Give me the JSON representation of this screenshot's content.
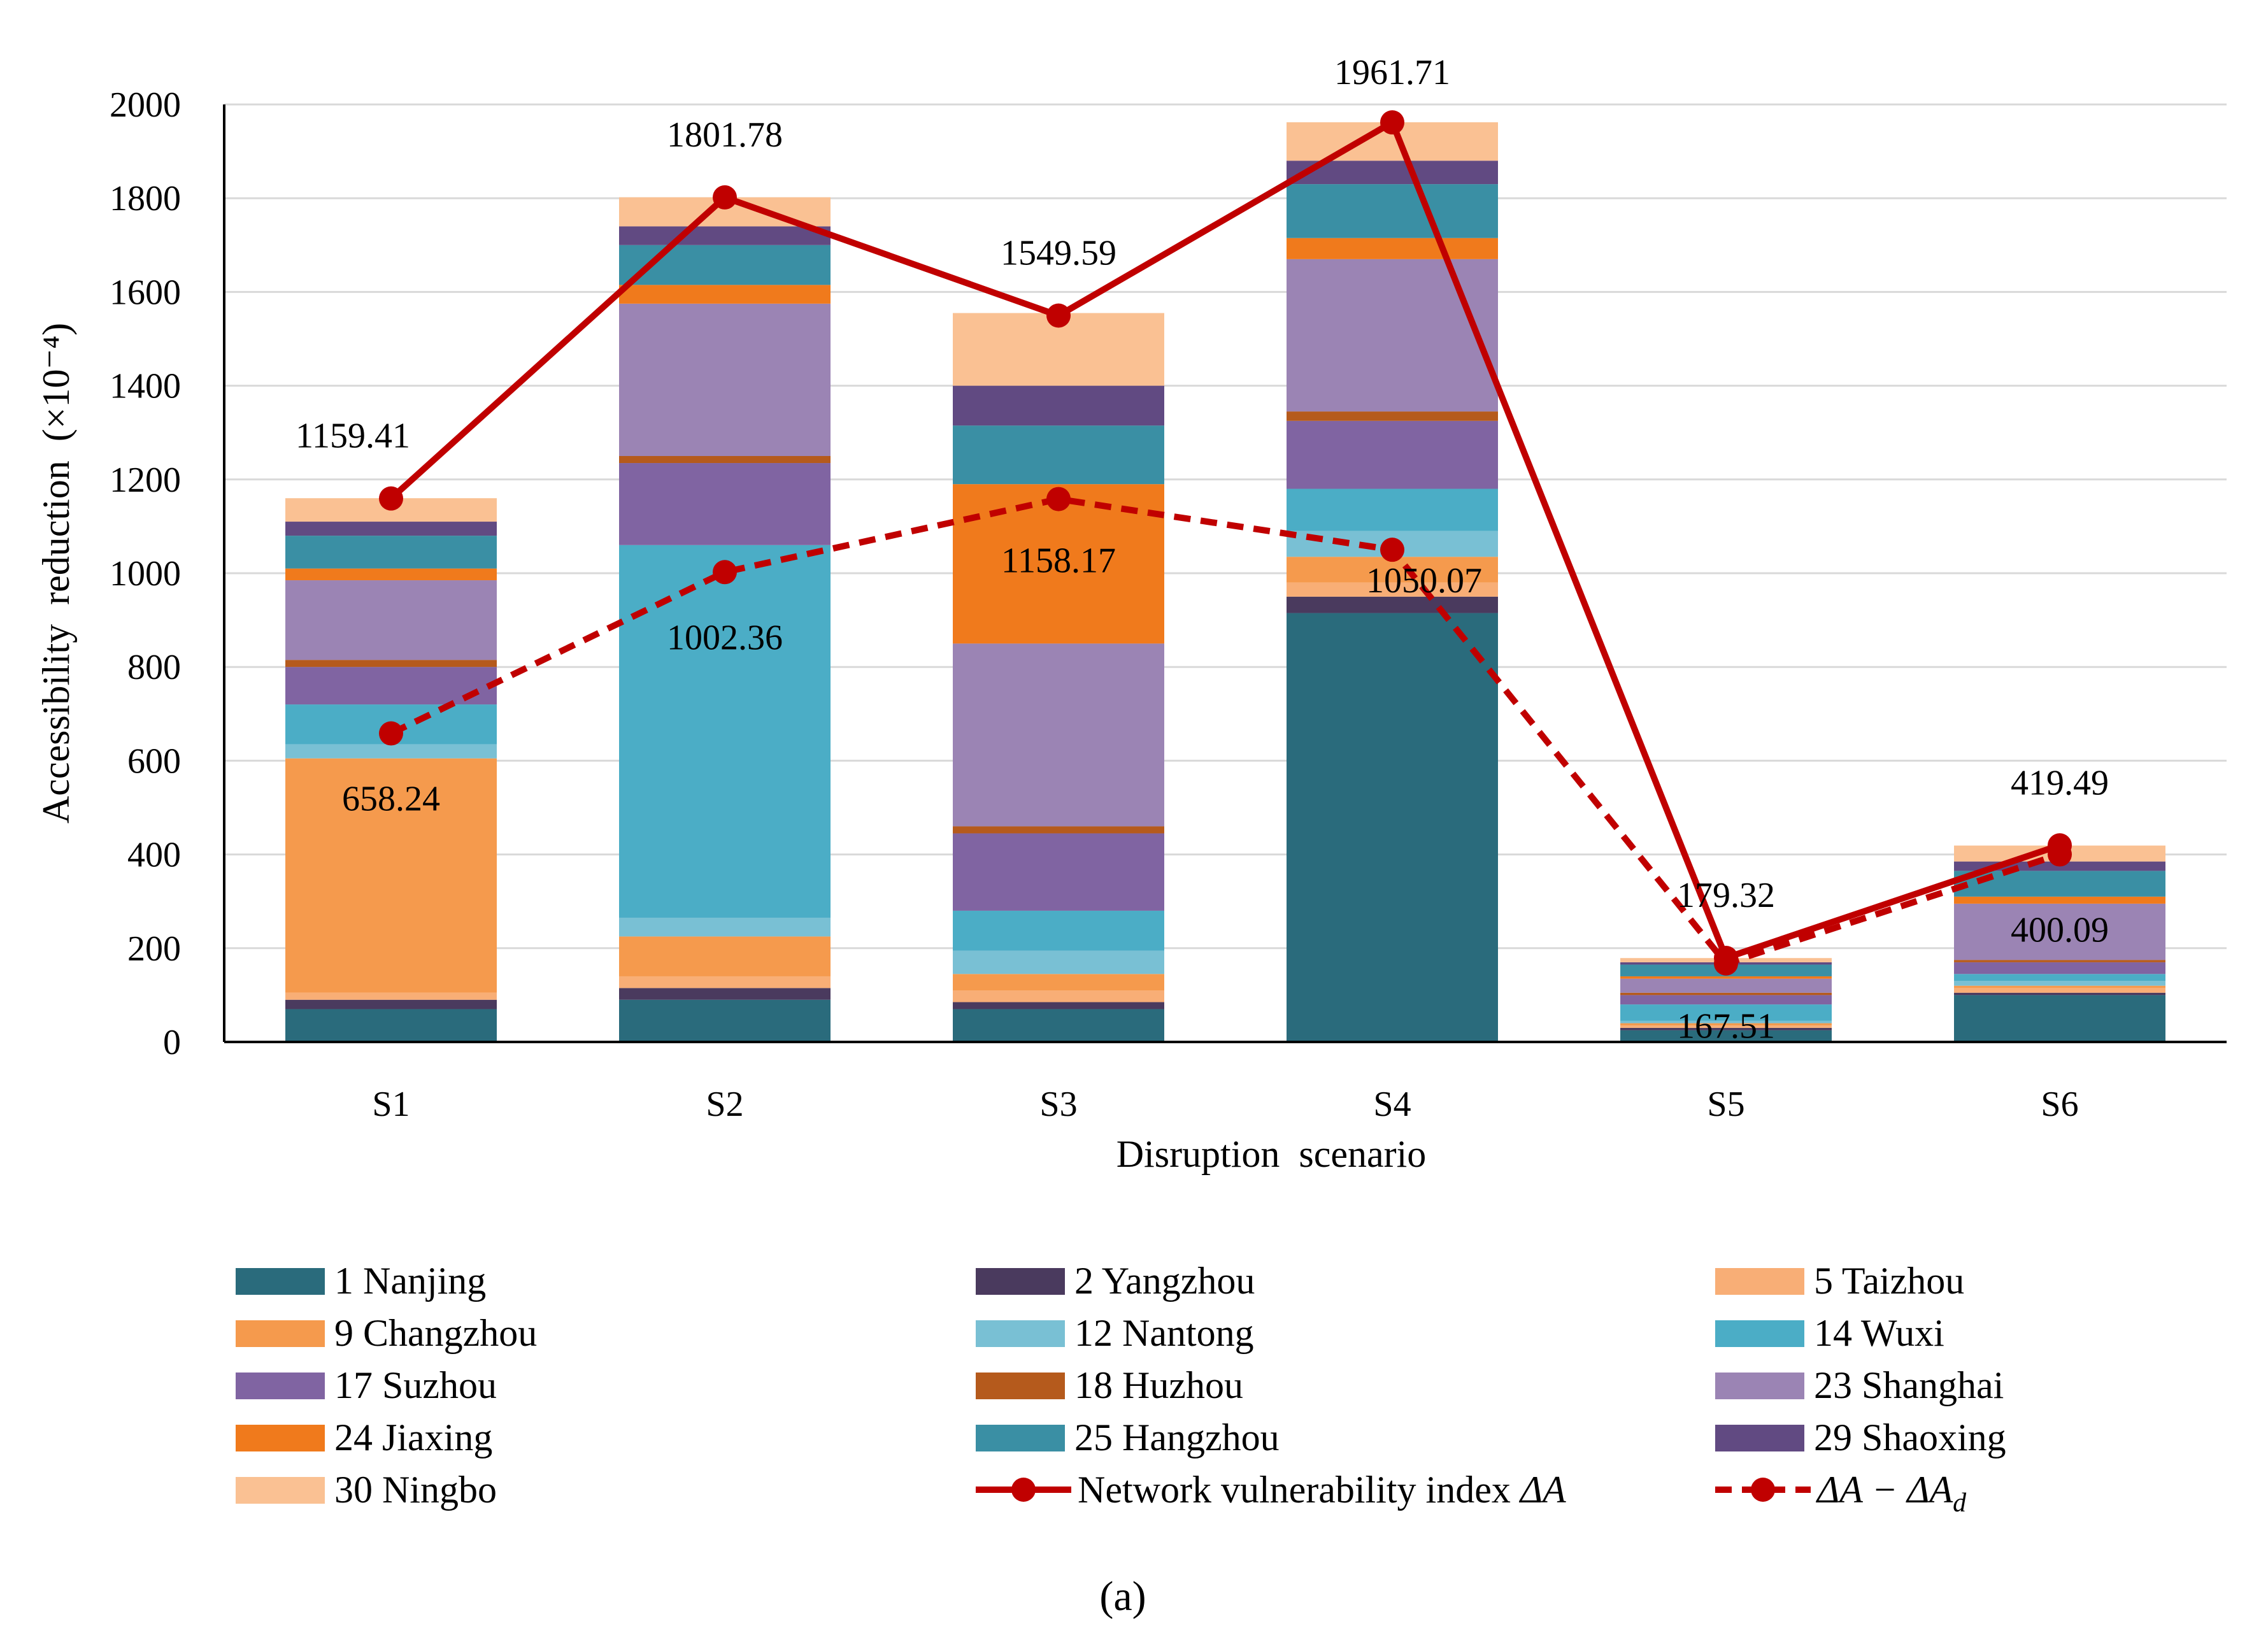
{
  "chart_data": {
    "type": "bar",
    "stacked": true,
    "caption": "(a)",
    "xlabel": "Disruption  scenario",
    "ylabel": "Accessibility  reduction  (×10⁻⁴)",
    "ylim": [
      0,
      2000
    ],
    "yticks": [
      0,
      200,
      400,
      600,
      800,
      1000,
      1200,
      1400,
      1600,
      1800,
      2000
    ],
    "grid": true,
    "legend_position": "bottom",
    "categories": [
      "S1",
      "S2",
      "S3",
      "S4",
      "S5",
      "S6"
    ],
    "series": [
      {
        "name": "1 Nanjing",
        "color": "#2a6b7c",
        "values": [
          70,
          90,
          70,
          915,
          25,
          100
        ]
      },
      {
        "name": "2 Yangzhou",
        "color": "#4a3a5e",
        "values": [
          20,
          25,
          15,
          35,
          5,
          5
        ]
      },
      {
        "name": "5 Taizhou",
        "color": "#f8ae76",
        "values": [
          15,
          25,
          25,
          30,
          5,
          10
        ]
      },
      {
        "name": "9 Changzhou",
        "color": "#f59a4d",
        "values": [
          500,
          85,
          35,
          55,
          5,
          5
        ]
      },
      {
        "name": "12 Nantong",
        "color": "#79c0d4",
        "values": [
          30,
          40,
          50,
          55,
          5,
          10
        ]
      },
      {
        "name": "14 Wuxi",
        "color": "#4badc6",
        "values": [
          85,
          795,
          85,
          90,
          35,
          15
        ]
      },
      {
        "name": "17 Suzhou",
        "color": "#8064a2",
        "values": [
          80,
          175,
          165,
          145,
          20,
          25
        ]
      },
      {
        "name": "18 Huzhou",
        "color": "#b55a1c",
        "values": [
          15,
          15,
          15,
          20,
          5,
          5
        ]
      },
      {
        "name": "23 Shanghai",
        "color": "#9b84b4",
        "values": [
          170,
          325,
          390,
          325,
          30,
          120
        ]
      },
      {
        "name": "24 Jiaxing",
        "color": "#f07a1c",
        "values": [
          25,
          40,
          340,
          45,
          5,
          15
        ]
      },
      {
        "name": "25 Hangzhou",
        "color": "#3a8fa4",
        "values": [
          70,
          85,
          125,
          115,
          25,
          55
        ]
      },
      {
        "name": "29 Shaoxing",
        "color": "#614a82",
        "values": [
          30,
          40,
          85,
          50,
          5,
          20
        ]
      },
      {
        "name": "30 Ningbo",
        "color": "#fac193",
        "values": [
          50,
          62,
          155,
          82,
          9,
          34
        ]
      }
    ],
    "lines": [
      {
        "name": "Network  vulnerability  index ΔA",
        "legend_main": "Network  vulnerability  index ",
        "legend_math": "ΔA",
        "color": "#c00000",
        "dashed": false,
        "values": [
          1159.41,
          1801.78,
          1549.59,
          1961.71,
          179.32,
          419.49
        ],
        "labels": [
          "1159.41",
          "1801.78",
          "1549.59",
          "1961.71",
          "179.32",
          "419.49"
        ]
      },
      {
        "name": "ΔA − ΔA_d",
        "legend_main": "",
        "legend_math": "ΔA − ΔA",
        "legend_sub": "d",
        "color": "#c00000",
        "dashed": true,
        "values": [
          658.24,
          1002.36,
          1158.17,
          1050.07,
          167.51,
          400.09
        ],
        "labels": [
          "658.24",
          "1002.36",
          "1158.17",
          "1050.07",
          "167.51",
          "400.09"
        ]
      }
    ]
  }
}
